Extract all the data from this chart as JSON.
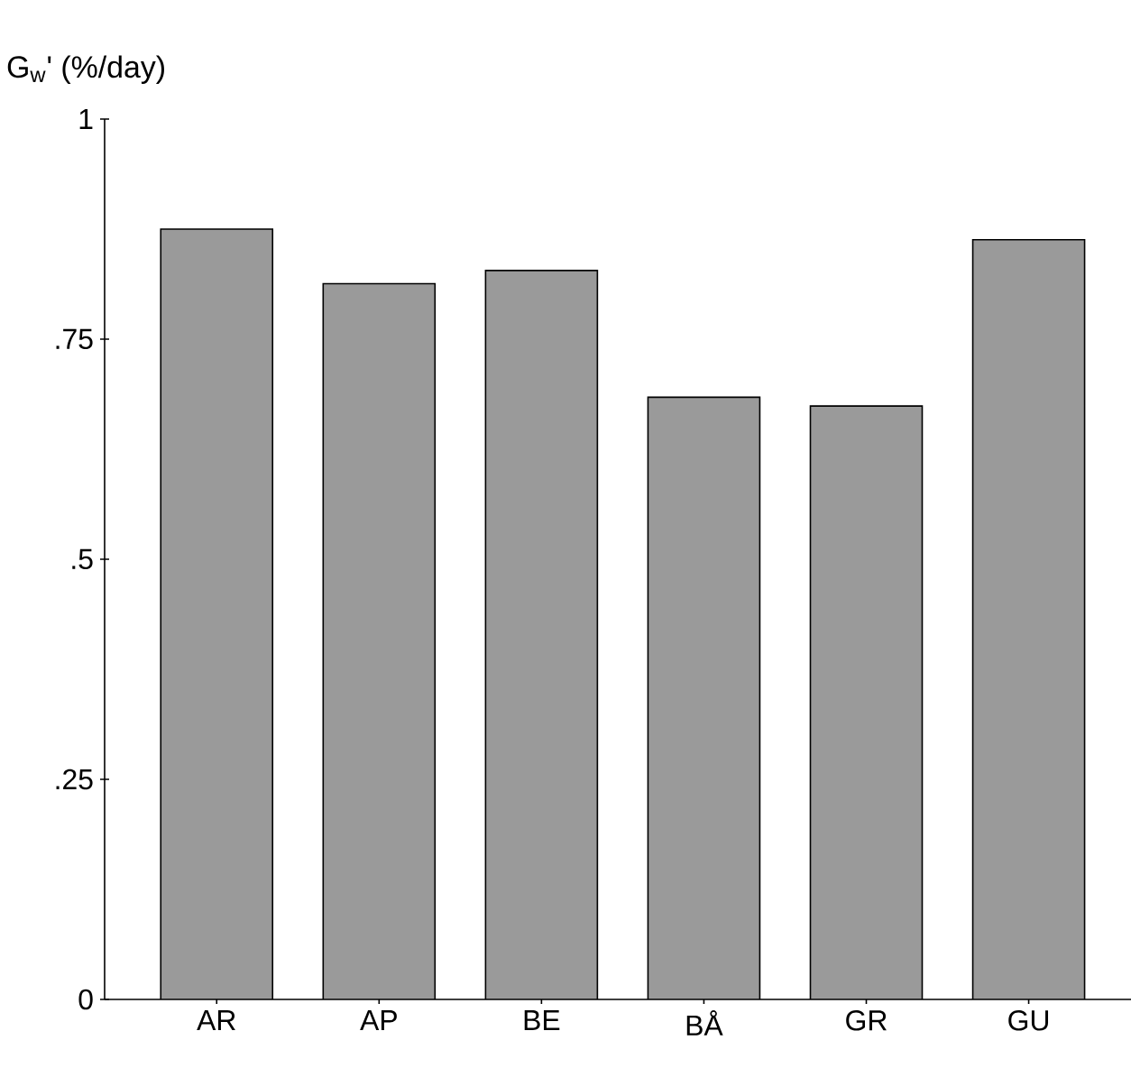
{
  "chart_data": {
    "type": "bar",
    "ylabel": "G$_{w}$' (%/day)",
    "categories": [
      "AR",
      "AP",
      "BE",
      "BÅ",
      "GR",
      "GU"
    ],
    "values": [
      0.875,
      0.813,
      0.828,
      0.684,
      0.674,
      0.863
    ],
    "color": "#9a9a9a",
    "ylim": [
      0,
      1
    ],
    "yticks": [
      {
        "value": 0,
        "label": "0"
      },
      {
        "value": 0.25,
        "label": ".25"
      },
      {
        "value": 0.5,
        "label": ".5"
      },
      {
        "value": 0.75,
        "label": ".75"
      },
      {
        "value": 1,
        "label": "1"
      }
    ],
    "grid": false
  }
}
